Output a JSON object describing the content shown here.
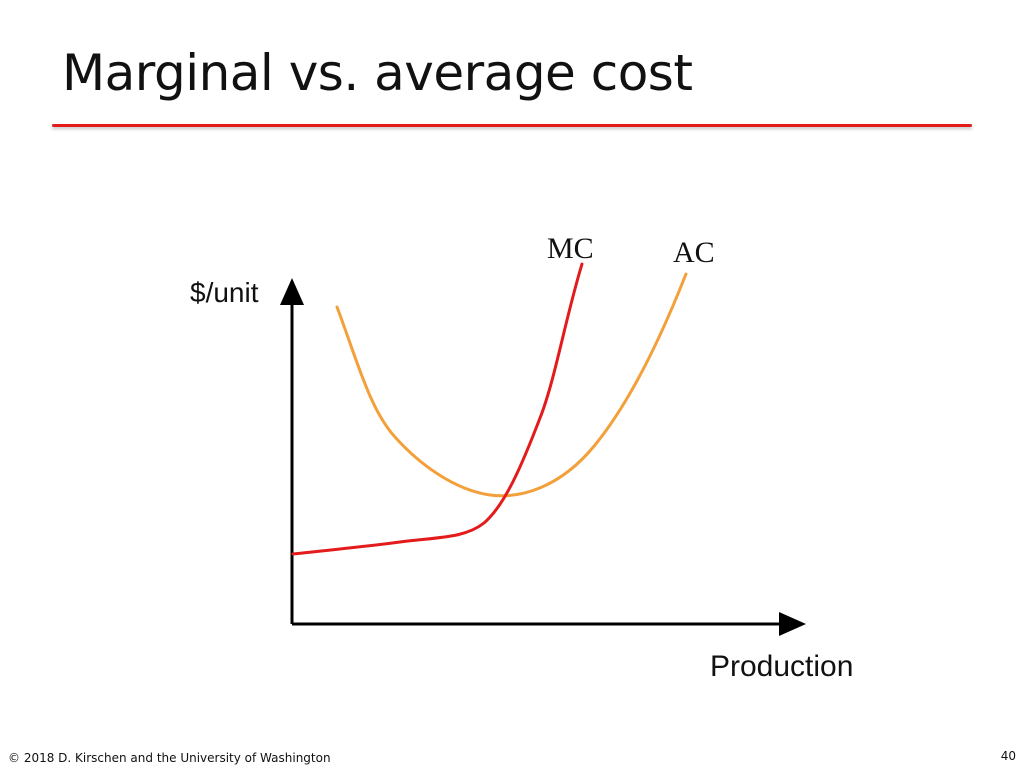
{
  "slide": {
    "title": "Marginal vs. average cost",
    "footer": "© 2018 D. Kirschen and the University of Washington",
    "page_number": "40"
  },
  "diagram": {
    "y_axis_label": "$/unit",
    "x_axis_label": "Production",
    "curves": [
      {
        "id": "mc",
        "label": "MC",
        "color": "#e31b1b"
      },
      {
        "id": "ac",
        "label": "AC",
        "color": "#f3a03a"
      }
    ]
  },
  "colors": {
    "title_rule": "#e31b1b",
    "axes": "#000000"
  }
}
